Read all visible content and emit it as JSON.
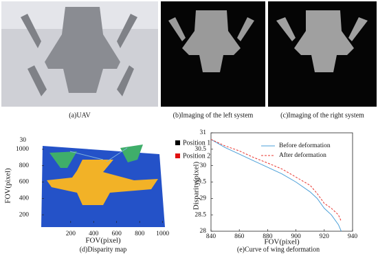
{
  "captions": [
    "(a)UAV",
    "(b)Imaging of the left system",
    "(c)Imaging of the right system",
    "(d)Disparity map",
    "(e)Curve of wing deformation"
  ],
  "chart_data": [
    {
      "type": "map",
      "xlabel": "FOV(pixel)",
      "ylabel": "FOV(pixel)",
      "xlim": [
        -50,
        1020
      ],
      "xticks": [
        200,
        400,
        600,
        800,
        1000
      ],
      "ylim": [
        100,
        1050
      ],
      "yticks": [
        200,
        400,
        600,
        800,
        1000
      ],
      "zticks": [
        30
      ],
      "legend": [
        {
          "name": "Position 1",
          "color": "#000000"
        },
        {
          "name": "Position 2",
          "color": "#e01010"
        }
      ]
    },
    {
      "type": "line",
      "xlabel": "FOV(pixel)",
      "ylabel": "Disparity(pixel)",
      "xlim": [
        840,
        940
      ],
      "xticks": [
        840,
        860,
        880,
        900,
        920,
        940
      ],
      "ylim": [
        28,
        31
      ],
      "yticks": [
        28,
        28.5,
        29,
        29.5,
        30,
        30.5,
        31
      ],
      "x": [
        840,
        850,
        860,
        870,
        880,
        890,
        900,
        910,
        915,
        920,
        925,
        930,
        932
      ],
      "series": [
        {
          "name": "Before deformation",
          "color": "#4a9fd8",
          "dash": false,
          "values": [
            30.8,
            30.55,
            30.35,
            30.15,
            29.95,
            29.75,
            29.5,
            29.2,
            29.0,
            28.7,
            28.5,
            28.2,
            28.0
          ]
        },
        {
          "name": "After deformation",
          "color": "#e8352e",
          "dash": true,
          "values": [
            30.8,
            30.6,
            30.45,
            30.25,
            30.08,
            29.9,
            29.65,
            29.4,
            29.15,
            28.85,
            28.7,
            28.5,
            28.3
          ]
        }
      ]
    }
  ]
}
